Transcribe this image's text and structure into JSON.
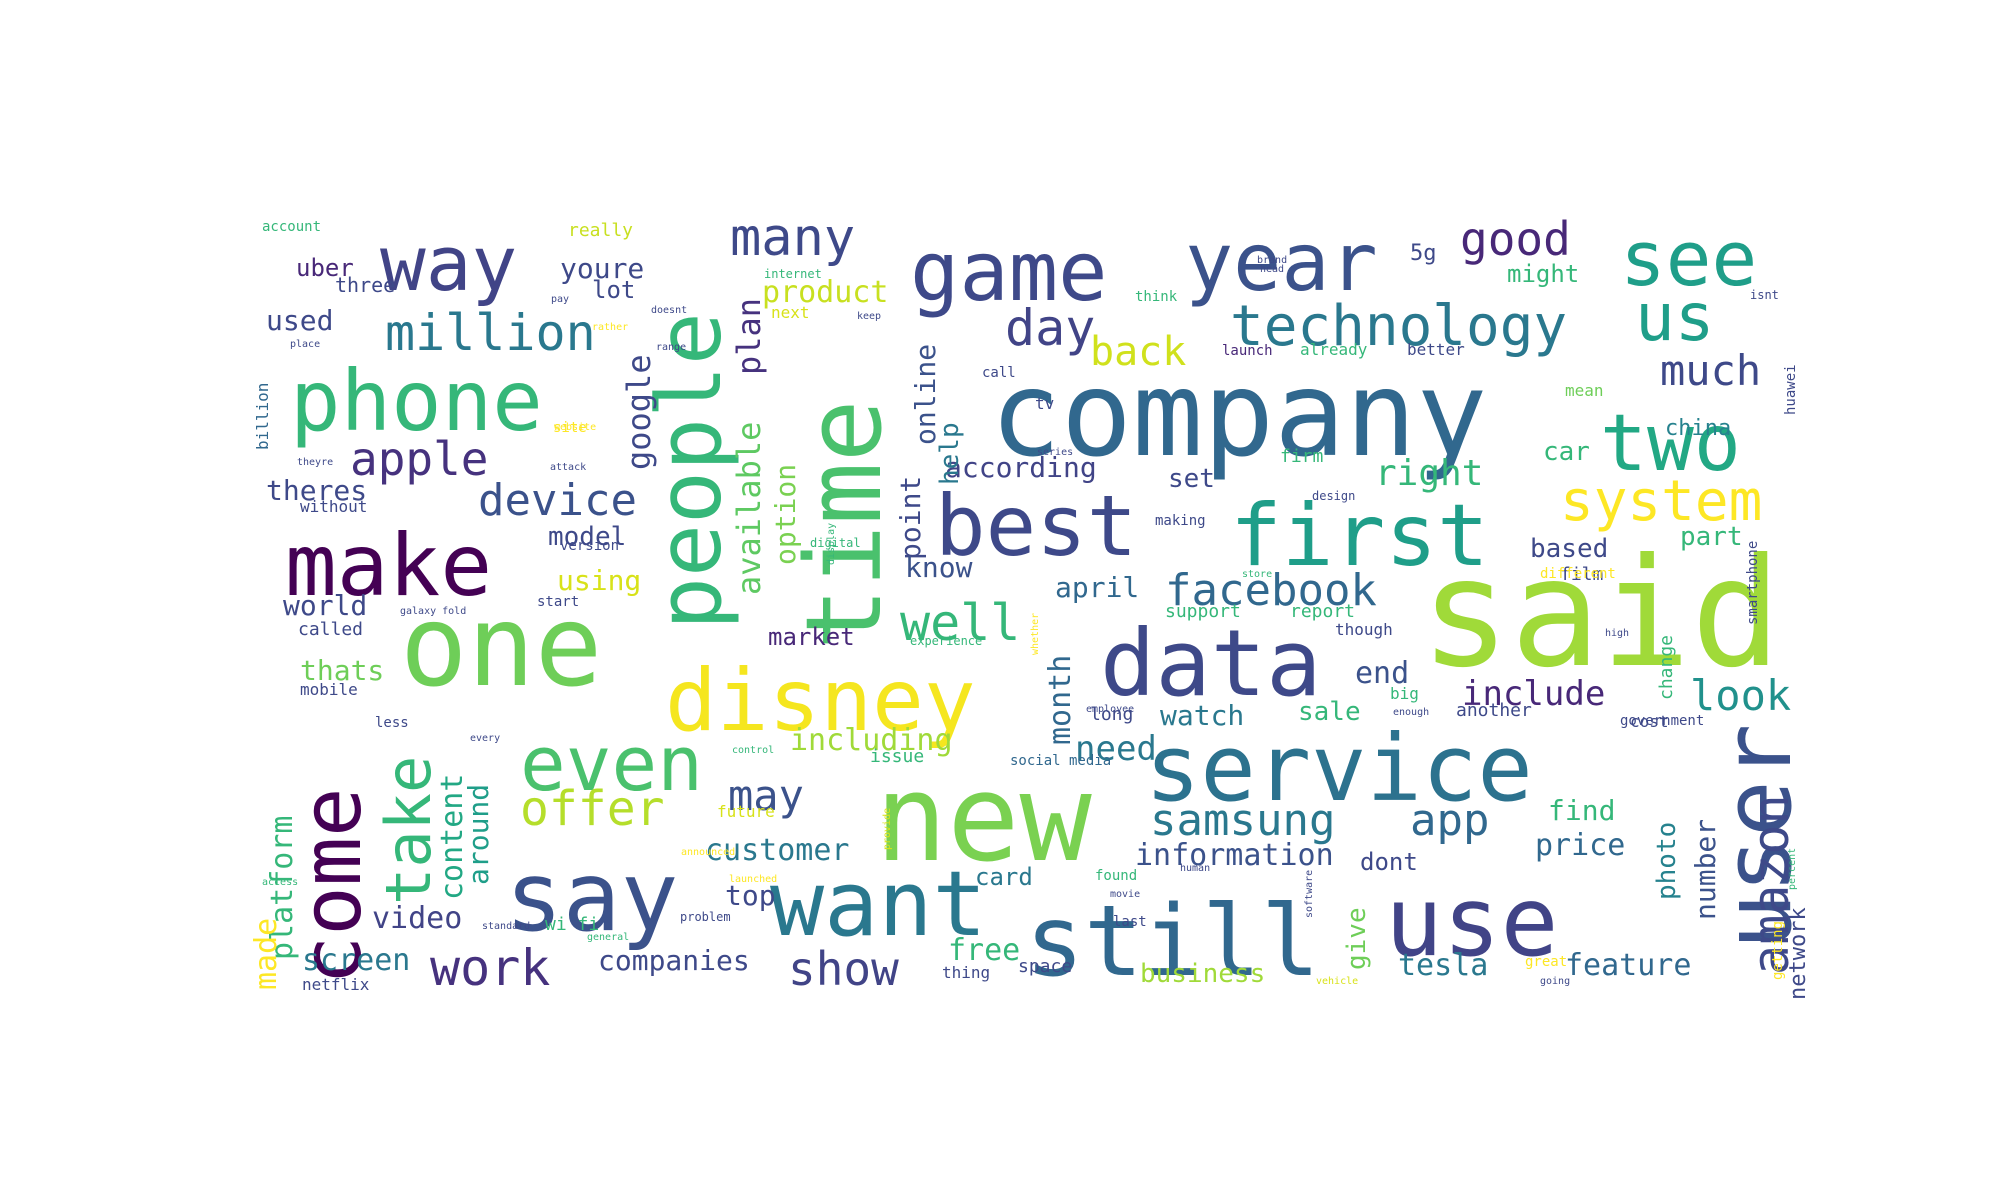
{
  "palette": [
    "#440154",
    "#482878",
    "#3e4989",
    "#31688e",
    "#26828e",
    "#1f9e89",
    "#35b779",
    "#6ece58",
    "#b5de2b",
    "#fde725"
  ],
  "words": [
    {
      "text": "said",
      "color": "#a0da39"
    },
    {
      "text": "company",
      "color": "#31688e"
    },
    {
      "text": "new",
      "color": "#7ad151"
    },
    {
      "text": "one",
      "color": "#6ece58"
    },
    {
      "text": "time",
      "color": "#4ac16d"
    },
    {
      "text": "people",
      "color": "#35b779"
    },
    {
      "text": "service",
      "color": "#2c728e"
    },
    {
      "text": "user",
      "color": "#3b528b"
    },
    {
      "text": "still",
      "color": "#31688e"
    },
    {
      "text": "use",
      "color": "#414487"
    },
    {
      "text": "want",
      "color": "#2a788e"
    },
    {
      "text": "say",
      "color": "#3b528b"
    },
    {
      "text": "disney",
      "color": "#f5e61f"
    },
    {
      "text": "data",
      "color": "#3e4989"
    },
    {
      "text": "first",
      "color": "#1f9e89"
    },
    {
      "text": "best",
      "color": "#3e4989"
    },
    {
      "text": "make",
      "color": "#440154"
    },
    {
      "text": "phone",
      "color": "#35b779"
    },
    {
      "text": "game",
      "color": "#3e4989"
    },
    {
      "text": "year",
      "color": "#3b528b"
    },
    {
      "text": "way",
      "color": "#414487"
    },
    {
      "text": "see",
      "color": "#1f9e89"
    },
    {
      "text": "come",
      "color": "#440154"
    },
    {
      "text": "even",
      "color": "#4ac16d"
    },
    {
      "text": "two",
      "color": "#22a884"
    },
    {
      "text": "us",
      "color": "#1f9e89"
    },
    {
      "text": "technology",
      "color": "#2a788e"
    },
    {
      "text": "take",
      "color": "#35b779"
    },
    {
      "text": "system",
      "color": "#fde725"
    },
    {
      "text": "amazon",
      "color": "#3e4989"
    },
    {
      "text": "work",
      "color": "#46327e"
    },
    {
      "text": "show",
      "color": "#414487"
    },
    {
      "text": "samsung",
      "color": "#2a788e"
    },
    {
      "text": "app",
      "color": "#31688e"
    },
    {
      "text": "facebook",
      "color": "#31688e"
    },
    {
      "text": "million",
      "color": "#2a788e"
    },
    {
      "text": "many",
      "color": "#3e4989"
    },
    {
      "text": "apple",
      "color": "#46327e"
    },
    {
      "text": "offer",
      "color": "#b5de2b"
    },
    {
      "text": "device",
      "color": "#3b528b"
    },
    {
      "text": "well",
      "color": "#35b779"
    },
    {
      "text": "day",
      "color": "#414487"
    },
    {
      "text": "look",
      "color": "#21918c"
    },
    {
      "text": "good",
      "color": "#482878"
    },
    {
      "text": "much",
      "color": "#3e4989"
    },
    {
      "text": "back",
      "color": "#d0e11c"
    },
    {
      "text": "may",
      "color": "#3b528b"
    },
    {
      "text": "right",
      "color": "#35b779"
    },
    {
      "text": "according",
      "color": "#414487"
    },
    {
      "text": "include",
      "color": "#482878"
    },
    {
      "text": "customer",
      "color": "#2a788e"
    },
    {
      "text": "information",
      "color": "#3b528b"
    },
    {
      "text": "including",
      "color": "#a0da39"
    },
    {
      "text": "need",
      "color": "#2a788e"
    },
    {
      "text": "end",
      "color": "#3b528b"
    },
    {
      "text": "watch",
      "color": "#2a788e"
    },
    {
      "text": "april",
      "color": "#31688e"
    },
    {
      "text": "google",
      "color": "#3e4989"
    },
    {
      "text": "product",
      "color": "#c8e020"
    },
    {
      "text": "youre",
      "color": "#3e4989"
    },
    {
      "text": "plan",
      "color": "#46327e"
    },
    {
      "text": "available",
      "color": "#5ec962"
    },
    {
      "text": "option",
      "color": "#7ad151"
    },
    {
      "text": "online",
      "color": "#3b528b"
    },
    {
      "text": "help",
      "color": "#2a788e"
    },
    {
      "text": "point",
      "color": "#3e4989"
    },
    {
      "text": "month",
      "color": "#31688e"
    },
    {
      "text": "platform",
      "color": "#35b779"
    },
    {
      "text": "content",
      "color": "#22a884"
    },
    {
      "text": "around",
      "color": "#1f9e89"
    },
    {
      "text": "made",
      "color": "#fde725"
    },
    {
      "text": "video",
      "color": "#414487"
    },
    {
      "text": "screen",
      "color": "#2a788e"
    },
    {
      "text": "companies",
      "color": "#3e4989"
    },
    {
      "text": "free",
      "color": "#35b779"
    },
    {
      "text": "business",
      "color": "#a0da39"
    },
    {
      "text": "tesla",
      "color": "#2a788e"
    },
    {
      "text": "feature",
      "color": "#31688e"
    },
    {
      "text": "number",
      "color": "#3b528b"
    },
    {
      "text": "photo",
      "color": "#26828e"
    },
    {
      "text": "network",
      "color": "#3e4989"
    },
    {
      "text": "give",
      "color": "#6ece58"
    },
    {
      "text": "price",
      "color": "#31688e"
    },
    {
      "text": "find",
      "color": "#35b779"
    },
    {
      "text": "dont",
      "color": "#3e4989"
    },
    {
      "text": "sale",
      "color": "#35b779"
    },
    {
      "text": "model",
      "color": "#3e4989"
    },
    {
      "text": "theres",
      "color": "#3e4989"
    },
    {
      "text": "used",
      "color": "#3e4989"
    },
    {
      "text": "uber",
      "color": "#482878"
    },
    {
      "text": "world",
      "color": "#3e4989"
    },
    {
      "text": "thats",
      "color": "#6ece58"
    },
    {
      "text": "using",
      "color": "#d8e219"
    },
    {
      "text": "market",
      "color": "#482878"
    },
    {
      "text": "top",
      "color": "#3e4989"
    },
    {
      "text": "card",
      "color": "#2a788e"
    },
    {
      "text": "set",
      "color": "#3e4989"
    },
    {
      "text": "know",
      "color": "#3b528b"
    },
    {
      "text": "based",
      "color": "#3e4989"
    },
    {
      "text": "part",
      "color": "#35b779"
    },
    {
      "text": "china",
      "color": "#26828e"
    },
    {
      "text": "car",
      "color": "#35b779"
    },
    {
      "text": "might",
      "color": "#35b779"
    },
    {
      "text": "lot",
      "color": "#3e4989"
    },
    {
      "text": "5g",
      "color": "#3e4989"
    },
    {
      "text": "called",
      "color": "#3e4989"
    },
    {
      "text": "mobile",
      "color": "#3e4989"
    },
    {
      "text": "three",
      "color": "#3e4989"
    },
    {
      "text": "without",
      "color": "#3e4989"
    },
    {
      "text": "really",
      "color": "#c8e020"
    },
    {
      "text": "account",
      "color": "#35b779"
    },
    {
      "text": "billion",
      "color": "#31688e"
    },
    {
      "text": "huawei",
      "color": "#3e4989"
    },
    {
      "text": "already",
      "color": "#35b779"
    },
    {
      "text": "better",
      "color": "#3e4989"
    },
    {
      "text": "launch",
      "color": "#482878"
    },
    {
      "text": "film",
      "color": "#3e4989"
    },
    {
      "text": "report",
      "color": "#35b779"
    },
    {
      "text": "support",
      "color": "#35b779"
    },
    {
      "text": "long",
      "color": "#3e4989"
    },
    {
      "text": "issue",
      "color": "#35b779"
    },
    {
      "text": "another",
      "color": "#3e4989"
    },
    {
      "text": "social media",
      "color": "#31688e"
    },
    {
      "text": "future",
      "color": "#d8e219"
    },
    {
      "text": "space",
      "color": "#3e4989"
    },
    {
      "text": "thing",
      "color": "#3e4989"
    },
    {
      "text": "wi fi",
      "color": "#35b779"
    },
    {
      "text": "netflix",
      "color": "#3e4989"
    },
    {
      "text": "firm",
      "color": "#35b779"
    },
    {
      "text": "smartphone",
      "color": "#3e4989"
    },
    {
      "text": "change",
      "color": "#35b779"
    },
    {
      "text": "cost",
      "color": "#3e4989"
    },
    {
      "text": "tv",
      "color": "#3e4989"
    },
    {
      "text": "mean",
      "color": "#6ece58"
    },
    {
      "text": "government",
      "color": "#3e4989"
    },
    {
      "text": "though",
      "color": "#3e4989"
    },
    {
      "text": "big",
      "color": "#35b779"
    },
    {
      "text": "last",
      "color": "#3e4989"
    },
    {
      "text": "found",
      "color": "#35b779"
    },
    {
      "text": "great",
      "color": "#fde725"
    },
    {
      "text": "going",
      "color": "#3e4989"
    },
    {
      "text": "think",
      "color": "#35b779"
    },
    {
      "text": "next",
      "color": "#d8e219"
    },
    {
      "text": "internet",
      "color": "#35b779"
    },
    {
      "text": "different",
      "color": "#fde725"
    },
    {
      "text": "making",
      "color": "#3e4989"
    },
    {
      "text": "call",
      "color": "#3e4989"
    },
    {
      "text": "design",
      "color": "#3e4989"
    },
    {
      "text": "digital",
      "color": "#35b779"
    },
    {
      "text": "display",
      "color": "#35b779"
    },
    {
      "text": "galaxy fold",
      "color": "#3e4989"
    },
    {
      "text": "experience",
      "color": "#35b779"
    },
    {
      "text": "employee",
      "color": "#3e4989"
    },
    {
      "text": "standard",
      "color": "#3e4989"
    },
    {
      "text": "problem",
      "color": "#3e4989"
    },
    {
      "text": "general",
      "color": "#35b779"
    },
    {
      "text": "provide",
      "color": "#d8e219"
    },
    {
      "text": "every",
      "color": "#3e4989"
    },
    {
      "text": "human",
      "color": "#3e4989"
    },
    {
      "text": "enough",
      "color": "#3e4989"
    },
    {
      "text": "control",
      "color": "#35b779"
    },
    {
      "text": "range",
      "color": "#3e4989"
    },
    {
      "text": "doesnt",
      "color": "#3e4989"
    },
    {
      "text": "keep",
      "color": "#3e4989"
    },
    {
      "text": "brand",
      "color": "#3e4989"
    },
    {
      "text": "site",
      "color": "#fde725"
    },
    {
      "text": "less",
      "color": "#3e4989"
    },
    {
      "text": "access",
      "color": "#35b779"
    },
    {
      "text": "movie",
      "color": "#3e4989"
    },
    {
      "text": "series",
      "color": "#3e4989"
    },
    {
      "text": "version",
      "color": "#3e4989"
    },
    {
      "text": "start",
      "color": "#3e4989"
    },
    {
      "text": "high",
      "color": "#3e4989"
    },
    {
      "text": "isnt",
      "color": "#3e4989"
    },
    {
      "text": "getting",
      "color": "#fde725"
    },
    {
      "text": "vehicle",
      "color": "#d8e219"
    },
    {
      "text": "software",
      "color": "#3e4989"
    },
    {
      "text": "percent",
      "color": "#35b779"
    },
    {
      "text": "launched",
      "color": "#fde725"
    },
    {
      "text": "announced",
      "color": "#fde725"
    },
    {
      "text": "whether",
      "color": "#fde725"
    },
    {
      "text": "place",
      "color": "#3e4989"
    },
    {
      "text": "theyre",
      "color": "#3e4989"
    },
    {
      "text": "attack",
      "color": "#3e4989"
    },
    {
      "text": "website",
      "color": "#fde725"
    },
    {
      "text": "rather",
      "color": "#fde725"
    },
    {
      "text": "pay",
      "color": "#3e4989"
    },
    {
      "text": "head",
      "color": "#3e4989"
    },
    {
      "text": "store",
      "color": "#35b779"
    }
  ]
}
